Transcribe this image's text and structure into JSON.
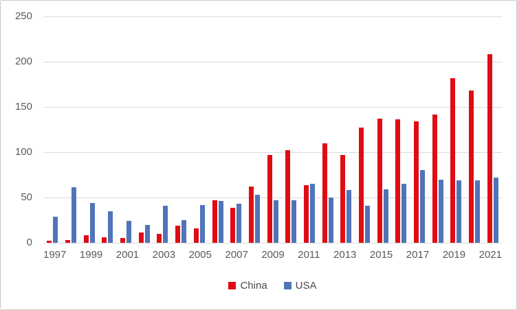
{
  "chart_data": {
    "type": "bar",
    "title": "",
    "xlabel": "",
    "ylabel": "",
    "categories": [
      1997,
      1998,
      1999,
      2000,
      2001,
      2002,
      2003,
      2004,
      2005,
      2006,
      2007,
      2008,
      2009,
      2010,
      2011,
      2012,
      2013,
      2014,
      2015,
      2016,
      2017,
      2018,
      2019,
      2020,
      2021
    ],
    "series": [
      {
        "name": "China",
        "color": "#e00c13",
        "values": [
          2,
          3,
          8,
          6,
          5,
          11,
          10,
          19,
          16,
          47,
          39,
          62,
          97,
          102,
          64,
          110,
          97,
          127,
          137,
          136,
          134,
          142,
          182,
          168,
          208
        ]
      },
      {
        "name": "USA",
        "color": "#4f74b8",
        "values": [
          29,
          61,
          44,
          35,
          24,
          20,
          41,
          25,
          42,
          46,
          43,
          53,
          47,
          47,
          65,
          50,
          58,
          41,
          59,
          65,
          80,
          70,
          69,
          69,
          72
        ]
      }
    ],
    "ylim": [
      0,
      250
    ],
    "y_ticks": [
      0,
      50,
      100,
      150,
      200,
      250
    ],
    "x_tick_labels": [
      "1997",
      "1999",
      "2001",
      "2003",
      "2005",
      "2007",
      "2009",
      "2011",
      "2013",
      "2015",
      "2017",
      "2019",
      "2021"
    ],
    "x_tick_step": 2,
    "grid": true,
    "gridline_color": "#d9d9d9",
    "axis_label_color": "#595959",
    "legend_position": "bottom",
    "legend_labels": [
      "China",
      "USA"
    ]
  }
}
